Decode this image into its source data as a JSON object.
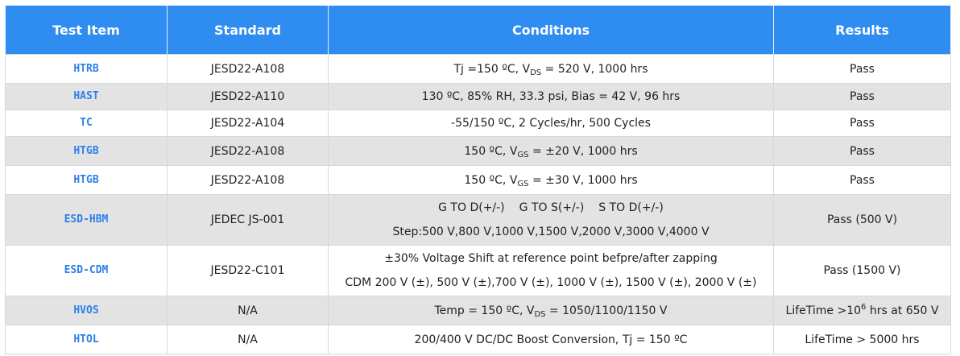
{
  "header": {
    "test_item": "Test Item",
    "standard": "Standard",
    "conditions": "Conditions",
    "results": "Results"
  },
  "rows": [
    {
      "item": "HTRB",
      "standard": "JESD22-A108",
      "conditions": {
        "pre": "Tj =150 ºC, V",
        "sub": "DS",
        "post": " = 520 V, 1000 hrs"
      },
      "result": "Pass"
    },
    {
      "item": "HAST",
      "standard": "JESD22-A110",
      "conditions": "130 ºC, 85% RH, 33.3 psi, Bias = 42 V, 96 hrs",
      "result": "Pass"
    },
    {
      "item": "TC",
      "standard": "JESD22-A104",
      "conditions": "-55/150 ºC, 2 Cycles/hr, 500 Cycles",
      "result": "Pass"
    },
    {
      "item": "HTGB",
      "standard": "JESD22-A108",
      "conditions": {
        "pre": "150 ºC, V",
        "sub": "GS",
        "post": " = ±20 V, 1000 hrs"
      },
      "result": "Pass"
    },
    {
      "item": "HTGB",
      "standard": "JESD22-A108",
      "conditions": {
        "pre": "150 ºC, V",
        "sub": "GS",
        "post": " = ±30 V, 1000 hrs"
      },
      "result": "Pass"
    },
    {
      "item": "ESD-HBM",
      "standard": "JEDEC JS-001",
      "conditions": {
        "line1": [
          "G TO D(+/-)",
          "G TO S(+/-)",
          "S TO D(+/-)"
        ],
        "line2": "Step:500 V,800 V,1000 V,1500 V,2000 V,3000 V,4000 V"
      },
      "result": "Pass (500 V)"
    },
    {
      "item": "ESD-CDM",
      "standard": "JESD22-C101",
      "conditions": {
        "line1": "±30% Voltage Shift at reference point befpre/after zapping",
        "line2": "CDM 200 V (±), 500 V (±),700 V (±), 1000 V (±), 1500 V (±), 2000 V (±)"
      },
      "result": "Pass (1500 V)"
    },
    {
      "item": "HVOS",
      "standard": "N/A",
      "conditions": {
        "pre": "Temp = 150 ºC, V",
        "sub": "DS",
        "post": " = 1050/1100/1150 V"
      },
      "result": {
        "pre": "LifeTime >10",
        "sup": "6",
        "post": " hrs at 650 V"
      }
    },
    {
      "item": "HTOL",
      "standard": "N/A",
      "conditions": "200/400 V DC/DC Boost Conversion, Tj = 150 ºC",
      "result": "LifeTime > 5000 hrs"
    }
  ]
}
